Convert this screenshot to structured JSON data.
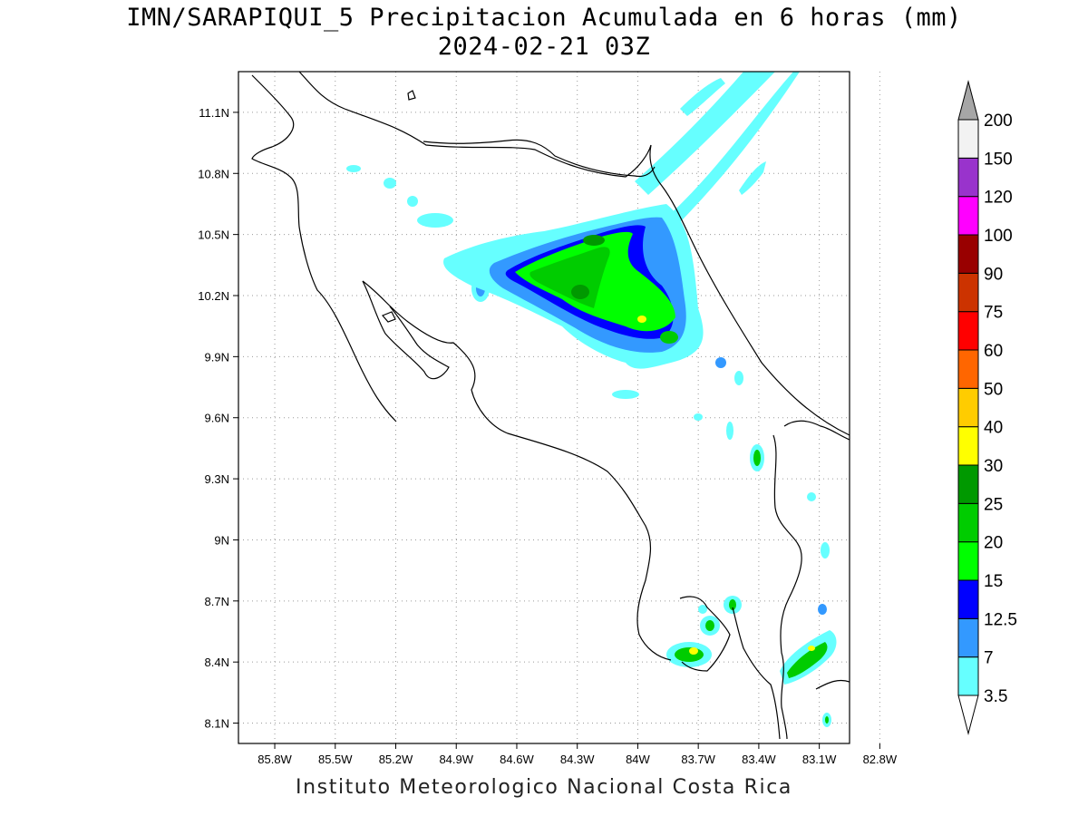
{
  "title": {
    "line1": "IMN/SARAPIQUI_5 Precipitacion Acumulada en 6 horas (mm)",
    "line2": "2024-02-21 03Z"
  },
  "footer": "Instituto Meteorologico Nacional Costa Rica",
  "map": {
    "lat_labels": [
      "11.1N",
      "10.8N",
      "10.5N",
      "10.2N",
      "9.9N",
      "9.6N",
      "9.3N",
      "9N",
      "8.7N",
      "8.4N",
      "8.1N"
    ],
    "lon_labels": [
      "85.8W",
      "85.5W",
      "85.2W",
      "84.9W",
      "84.6W",
      "84.3W",
      "84W",
      "83.7W",
      "83.4W",
      "83.1W",
      "82.8W"
    ],
    "lat_range": [
      8.0,
      11.3
    ],
    "lon_range": [
      -85.98,
      -82.95
    ],
    "grid": "dotted",
    "coastline_color": "#000000"
  },
  "colorbar": {
    "units": "mm",
    "levels": [
      "3.5",
      "7",
      "12.5",
      "15",
      "20",
      "25",
      "30",
      "40",
      "50",
      "60",
      "75",
      "90",
      "100",
      "120",
      "150",
      "200"
    ],
    "colors": [
      "#66ffff",
      "#3399ff",
      "#0000ff",
      "#00ff00",
      "#00cc00",
      "#009900",
      "#ffff00",
      "#ffcc00",
      "#ff6600",
      "#ff0000",
      "#cc3300",
      "#990000",
      "#ff00ff",
      "#9933cc",
      "#f2f2f2",
      "#a6a6a6"
    ],
    "below_color": "#ffffff",
    "above_color": "#a6a6a6"
  }
}
